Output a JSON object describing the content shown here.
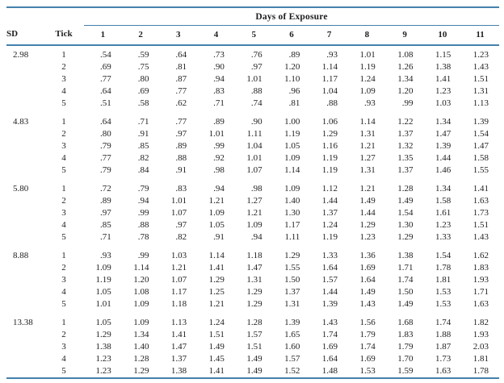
{
  "colors": {
    "rule": "#4381ad",
    "text": "#1e1e1e"
  },
  "table": {
    "spanner_label": "Days of Exposure",
    "sd_header": "SD",
    "tick_header": "Tick",
    "day_headers": [
      "1",
      "2",
      "3",
      "4",
      "5",
      "6",
      "7",
      "8",
      "9",
      "10",
      "11"
    ],
    "groups": [
      {
        "sd": "2.98",
        "rows": [
          {
            "tick": "1",
            "values": [
              ".54",
              ".59",
              ".64",
              ".73",
              ".76",
              ".89",
              ".93",
              "1.01",
              "1.08",
              "1.15",
              "1.23"
            ]
          },
          {
            "tick": "2",
            "values": [
              ".69",
              ".75",
              ".81",
              ".90",
              ".97",
              "1.20",
              "1.14",
              "1.19",
              "1.26",
              "1.38",
              "1.43"
            ]
          },
          {
            "tick": "3",
            "values": [
              ".77",
              ".80",
              ".87",
              ".94",
              "1.01",
              "1.10",
              "1.17",
              "1.24",
              "1.34",
              "1.41",
              "1.51"
            ]
          },
          {
            "tick": "4",
            "values": [
              ".64",
              ".69",
              ".77",
              ".83",
              ".88",
              ".96",
              "1.04",
              "1.09",
              "1.20",
              "1.23",
              "1.31"
            ]
          },
          {
            "tick": "5",
            "values": [
              ".51",
              ".58",
              ".62",
              ".71",
              ".74",
              ".81",
              ".88",
              ".93",
              ".99",
              "1.03",
              "1.13"
            ]
          }
        ]
      },
      {
        "sd": "4.83",
        "rows": [
          {
            "tick": "1",
            "values": [
              ".64",
              ".71",
              ".77",
              ".89",
              ".90",
              "1.00",
              "1.06",
              "1.14",
              "1.22",
              "1.34",
              "1.39"
            ]
          },
          {
            "tick": "2",
            "values": [
              ".80",
              ".91",
              ".97",
              "1.01",
              "1.11",
              "1.19",
              "1.29",
              "1.31",
              "1.37",
              "1.47",
              "1.54"
            ]
          },
          {
            "tick": "3",
            "values": [
              ".79",
              ".85",
              ".89",
              ".99",
              "1.04",
              "1.05",
              "1.16",
              "1.21",
              "1.32",
              "1.39",
              "1.47"
            ]
          },
          {
            "tick": "4",
            "values": [
              ".77",
              ".82",
              ".88",
              ".92",
              "1.01",
              "1.09",
              "1.19",
              "1.27",
              "1.35",
              "1.44",
              "1.58"
            ]
          },
          {
            "tick": "5",
            "values": [
              ".79",
              ".84",
              ".91",
              ".98",
              "1.07",
              "1.14",
              "1.19",
              "1.31",
              "1.37",
              "1.46",
              "1.55"
            ]
          }
        ]
      },
      {
        "sd": "5.80",
        "rows": [
          {
            "tick": "1",
            "values": [
              ".72",
              ".79",
              ".83",
              ".94",
              ".98",
              "1.09",
              "1.12",
              "1.21",
              "1.28",
              "1.34",
              "1.41"
            ]
          },
          {
            "tick": "2",
            "values": [
              ".89",
              ".94",
              "1.01",
              "1.21",
              "1.27",
              "1.40",
              "1.44",
              "1.49",
              "1.49",
              "1.58",
              "1.63"
            ]
          },
          {
            "tick": "3",
            "values": [
              ".97",
              ".99",
              "1.07",
              "1.09",
              "1.21",
              "1.30",
              "1.37",
              "1.44",
              "1.54",
              "1.61",
              "1.73"
            ]
          },
          {
            "tick": "4",
            "values": [
              ".85",
              ".88",
              ".97",
              "1.05",
              "1.09",
              "1.17",
              "1.24",
              "1.29",
              "1.30",
              "1.23",
              "1.51"
            ]
          },
          {
            "tick": "5",
            "values": [
              ".71",
              ".78",
              ".82",
              ".91",
              ".94",
              "1.11",
              "1.19",
              "1.23",
              "1.29",
              "1.33",
              "1.43"
            ]
          }
        ]
      },
      {
        "sd": "8.88",
        "rows": [
          {
            "tick": "1",
            "values": [
              ".93",
              ".99",
              "1.03",
              "1.14",
              "1.18",
              "1.29",
              "1.33",
              "1.36",
              "1.38",
              "1.54",
              "1.62"
            ]
          },
          {
            "tick": "2",
            "values": [
              "1.09",
              "1.14",
              "1.21",
              "1.41",
              "1.47",
              "1.55",
              "1.64",
              "1.69",
              "1.71",
              "1.78",
              "1.83"
            ]
          },
          {
            "tick": "3",
            "values": [
              "1.19",
              "1.20",
              "1.07",
              "1.29",
              "1.31",
              "1.50",
              "1.57",
              "1.64",
              "1.74",
              "1.81",
              "1.93"
            ]
          },
          {
            "tick": "4",
            "values": [
              "1.05",
              "1.08",
              "1.17",
              "1.25",
              "1.29",
              "1.37",
              "1.44",
              "1.49",
              "1.50",
              "1.53",
              "1.71"
            ]
          },
          {
            "tick": "5",
            "values": [
              "1.01",
              "1.09",
              "1.18",
              "1.21",
              "1.29",
              "1.31",
              "1.39",
              "1.43",
              "1.49",
              "1.53",
              "1.63"
            ]
          }
        ]
      },
      {
        "sd": "13.38",
        "rows": [
          {
            "tick": "1",
            "values": [
              "1.05",
              "1.09",
              "1.13",
              "1.24",
              "1.28",
              "1.39",
              "1.43",
              "1.56",
              "1.68",
              "1.74",
              "1.82"
            ]
          },
          {
            "tick": "2",
            "values": [
              "1.29",
              "1.34",
              "1.41",
              "1.51",
              "1.57",
              "1.65",
              "1.74",
              "1.79",
              "1.83",
              "1.88",
              "1.93"
            ]
          },
          {
            "tick": "3",
            "values": [
              "1.38",
              "1.40",
              "1.47",
              "1.49",
              "1.51",
              "1.60",
              "1.69",
              "1.74",
              "1.79",
              "1.87",
              "2.03"
            ]
          },
          {
            "tick": "4",
            "values": [
              "1.23",
              "1.28",
              "1.37",
              "1.45",
              "1.49",
              "1.57",
              "1.64",
              "1.69",
              "1.70",
              "1.73",
              "1.81"
            ]
          },
          {
            "tick": "5",
            "values": [
              "1.23",
              "1.29",
              "1.38",
              "1.41",
              "1.49",
              "1.52",
              "1.48",
              "1.53",
              "1.59",
              "1.63",
              "1.78"
            ]
          }
        ]
      }
    ]
  }
}
